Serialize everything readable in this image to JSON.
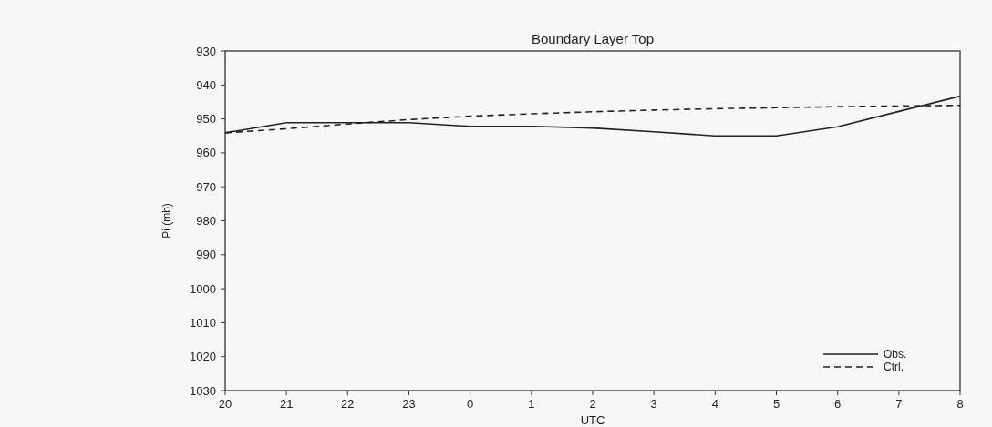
{
  "chart_data": {
    "type": "line",
    "title": "Boundary Layer Top",
    "xlabel": "UTC",
    "ylabel": "Pi (mb)",
    "categories": [
      "20",
      "21",
      "22",
      "23",
      "0",
      "1",
      "2",
      "3",
      "4",
      "5",
      "6",
      "7",
      "8"
    ],
    "series": [
      {
        "name": "Obs.",
        "color": "#222222",
        "line_style": "solid",
        "values": [
          954.1,
          951.1,
          951.1,
          951.1,
          952.2,
          952.2,
          952.7,
          953.8,
          955,
          955,
          952.3,
          947.8,
          943.3
        ]
      },
      {
        "name": "Ctrl.",
        "color": "#222222",
        "line_style": "dashed",
        "values": [
          954.1,
          952.9,
          951.5,
          950.2,
          949.2,
          948.5,
          947.9,
          947.4,
          947,
          946.7,
          946.4,
          946.2,
          946
        ]
      }
    ],
    "ylim": [
      1030,
      930
    ],
    "yticks": [
      930,
      940,
      950,
      960,
      970,
      980,
      990,
      1000,
      1010,
      1020,
      1030
    ],
    "grid": false,
    "legend": "bottom right",
    "marker": "none"
  }
}
